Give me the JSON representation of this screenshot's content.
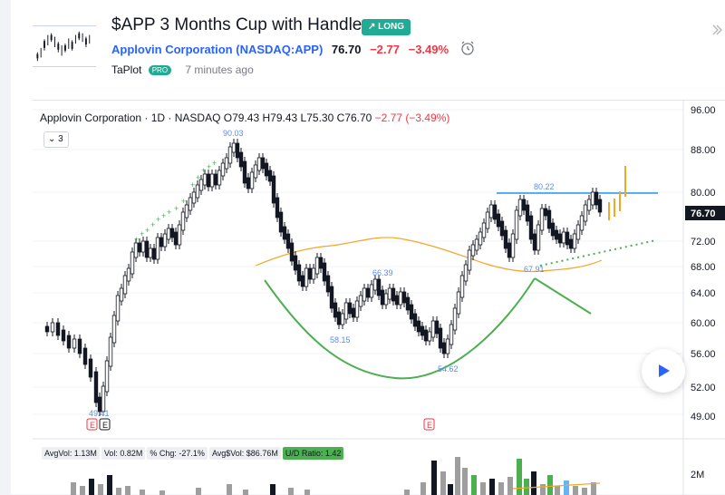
{
  "idea": {
    "title": "$APP 3 Months Cup with Handle",
    "badge": "LONG",
    "company": "Applovin Corporation",
    "symbol": "(NASDAQ:APP)",
    "price": "76.70",
    "change": "−2.77",
    "change_pct": "−3.49%",
    "author": "TaPlot",
    "pro_label": "PRO",
    "time_ago": "7 minutes ago"
  },
  "chart": {
    "legend_name": "Applovin Corporation · 1D · NASDAQ",
    "o_label": "O",
    "o_value": "79.43",
    "h_label": "H",
    "h_value": "79.43",
    "l_label": "L",
    "l_value": "75.30",
    "c_label": "C",
    "c_value": "76.70",
    "change_text": "−2.77 (−3.49%)",
    "collapse_count": "3",
    "price_tag": "76.70",
    "y_ticks": [
      "96.00",
      "88.00",
      "80.00",
      "76.70",
      "72.00",
      "68.00",
      "64.00",
      "60.00",
      "56.00",
      "52.00",
      "49.00"
    ],
    "annotations": [
      "90.03",
      "80.22",
      "67.91",
      "66.39",
      "58.15",
      "54.62",
      "49.41"
    ],
    "earnings_markers": [
      "E",
      "E",
      "E"
    ],
    "vol_axis_label": "2M",
    "colors": {
      "up": "#131722",
      "down": "#131722",
      "cup": "#4caf50",
      "ma": "#f5a623",
      "resistance": "#2196f3",
      "plus": "#4caf50"
    }
  },
  "volume_legend": {
    "avgvol": "AvgVol: 1.13M",
    "vol": "Vol: 0.82M",
    "pct_chg": "% Chg: -27.1%",
    "avgdollar": "Avg$Vol: $86.76M",
    "ud": "U/D Ratio: 1.42"
  }
}
